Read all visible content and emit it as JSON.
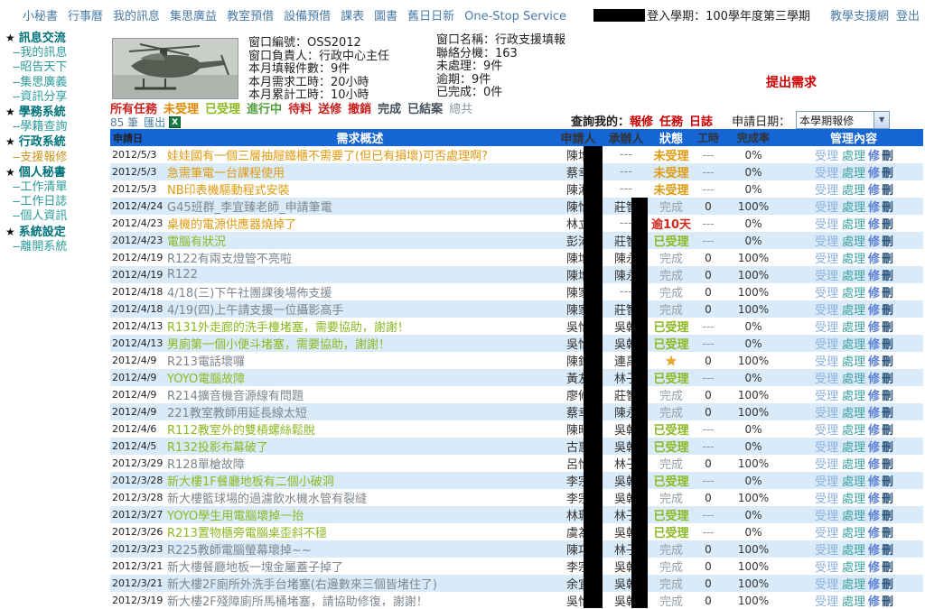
{
  "colors": {
    "nav_link": "#4a7ba7",
    "sidebar_category": "#00737a",
    "sidebar_link": "#2e9b9b",
    "sidebar_active": "#c9951c",
    "table_header_bg": "#1565d4",
    "row_alt_bg": "#d9eaf8",
    "accent_red": "#cc0000",
    "status_orange": "#e09a10",
    "status_green": "#8cb822",
    "status_red": "#d42a1e",
    "status_gray": "#96a0a8",
    "star_gold": "#f0a818"
  },
  "top_nav": {
    "items": [
      "小秘書",
      "行事曆",
      "我的訊息",
      "集思廣益",
      "教室預借",
      "設備預借",
      "課表",
      "圖書",
      "舊日日新",
      "One-Stop Service"
    ]
  },
  "header_right": {
    "login_term": "登入學期：100學年度第三學期",
    "links": [
      "教學支援網",
      "登出"
    ]
  },
  "sidebar": {
    "star": "★",
    "item_prefix": "--",
    "sections": [
      {
        "title": "訊息交流",
        "items": [
          {
            "label": "我的訊息"
          },
          {
            "label": "昭告天下"
          },
          {
            "label": "集思廣義"
          },
          {
            "label": "資訊分享"
          }
        ]
      },
      {
        "title": "學務系統",
        "items": [
          {
            "label": "學籍查詢"
          }
        ]
      },
      {
        "title": "行政系統",
        "items": [
          {
            "label": "支援報修",
            "active": true
          }
        ]
      },
      {
        "title": "個人秘書",
        "items": [
          {
            "label": "工作清單"
          },
          {
            "label": "工作日誌"
          },
          {
            "label": "個人資訊"
          }
        ]
      },
      {
        "title": "系統設定",
        "items": [
          {
            "label": "離開系統"
          }
        ]
      }
    ]
  },
  "info_panel": {
    "window_image": "attack-helicopter-photo",
    "left_lines": [
      "窗口編號：OSS2012",
      "窗口負責人：行政中心主任",
      "本月填報件數：9件",
      "本月需求工時：20小時",
      "本月累計工時：10小時"
    ],
    "right_lines": [
      "窗口名稱：行政支援填報",
      "聯絡分機：163",
      "未處理：9件",
      "逾期：9件",
      "已完成：0件"
    ],
    "request_button": "提出需求"
  },
  "toolbar": {
    "filters": [
      {
        "label": "所有任務",
        "color": "red"
      },
      {
        "label": "未受理",
        "color": "orange"
      },
      {
        "label": "已受理",
        "color": "green"
      },
      {
        "label": "進行中",
        "color": "green2"
      },
      {
        "label": "待料",
        "color": "red"
      },
      {
        "label": "送修",
        "color": "red"
      },
      {
        "label": "撤銷",
        "color": "red"
      },
      {
        "label": "完成",
        "color": "dark"
      },
      {
        "label": "已結案",
        "color": "dark"
      },
      {
        "label": "總共",
        "color": "muted"
      }
    ],
    "count": "85 筆",
    "export_label": "匯出",
    "export_icon": "excel-icon",
    "query_label": "查詢我的：",
    "query_links": [
      "報修",
      "任務",
      "日誌"
    ],
    "date_label": "申請日期：",
    "date_select_value": "本學期報修"
  },
  "table": {
    "columns": [
      "申請日",
      "需求概述",
      "申請人",
      "承辦人",
      "狀態",
      "工時",
      "完成率",
      "管理內容"
    ],
    "manage_links": [
      "受理",
      "處理",
      "修",
      "刪"
    ],
    "empty": "---",
    "rows": [
      {
        "date": "2012/5/3",
        "desc": "娃娃國有一個三層抽屜鐵櫃不需要了(但已有損壞)可否處理啊?",
        "desc_color": "orange",
        "applicant": "陳增",
        "handler": "",
        "status": "未受理",
        "status_color": "orange",
        "hours": "---",
        "rate": "0%"
      },
      {
        "date": "2012/5/3",
        "desc": "急需筆電一台課程使用",
        "desc_color": "orange",
        "applicant": "蔡幸",
        "handler": "",
        "status": "未受理",
        "status_color": "orange",
        "hours": "---",
        "rate": "0%"
      },
      {
        "date": "2012/5/3",
        "desc": "NB印表機驅動程式安裝",
        "desc_color": "orange",
        "applicant": "陳湘",
        "handler": "",
        "status": "未受理",
        "status_color": "orange",
        "hours": "---",
        "rate": "0%"
      },
      {
        "date": "2012/4/24",
        "desc": "G45班群_李宜臻老師_申請筆電",
        "desc_color": "gray",
        "applicant": "陳怡",
        "handler": "莊智",
        "status": "完成",
        "status_color": "gray",
        "hours": "0",
        "rate": "100%"
      },
      {
        "date": "2012/4/23",
        "desc": "桌機的電源供應器燒掉了",
        "desc_color": "orange",
        "applicant": "林立",
        "handler": "",
        "status": "逾10天",
        "status_color": "red",
        "hours": "---",
        "rate": "0%"
      },
      {
        "date": "2012/4/23",
        "desc": "電腦有狀況",
        "desc_color": "green",
        "applicant": "彭沛",
        "handler": "莊智",
        "status": "已受理",
        "status_color": "green",
        "hours": "---",
        "rate": "0%"
      },
      {
        "date": "2012/4/19",
        "desc": "R122有兩支燈管不亮啦",
        "desc_color": "gray",
        "applicant": "陳增",
        "handler": "陳永",
        "status": "完成",
        "status_color": "gray",
        "hours": "0",
        "rate": "100%"
      },
      {
        "date": "2012/4/19",
        "desc": "R122",
        "desc_color": "gray",
        "applicant": "陳增",
        "handler": "陳永",
        "status": "完成",
        "status_color": "gray",
        "hours": "0",
        "rate": "100%"
      },
      {
        "date": "2012/4/18",
        "desc": "4/18(三)下午社團課後場佈支援",
        "desc_color": "gray",
        "applicant": "陳家",
        "handler": "",
        "status": "完成",
        "status_color": "gray",
        "hours": "0",
        "rate": "100%"
      },
      {
        "date": "2012/4/18",
        "desc": "4/19(四)上午請支援一位攝影高手",
        "desc_color": "gray",
        "applicant": "陳家",
        "handler": "莊智",
        "status": "完成",
        "status_color": "gray",
        "hours": "0",
        "rate": "100%"
      },
      {
        "date": "2012/4/13",
        "desc": "R131外走廊的洗手檯堵塞，需要協助，謝謝！",
        "desc_color": "green",
        "applicant": "吳怡",
        "handler": "吳朝",
        "status": "已受理",
        "status_color": "green",
        "hours": "---",
        "rate": "0%"
      },
      {
        "date": "2012/4/13",
        "desc": "男廁第一個小便斗堵塞，需要協助，謝謝！",
        "desc_color": "green",
        "applicant": "吳怡",
        "handler": "吳朝",
        "status": "已受理",
        "status_color": "green",
        "hours": "---",
        "rate": "0%"
      },
      {
        "date": "2012/4/9",
        "desc": "R213電話壞囉",
        "desc_color": "gray",
        "applicant": "陳鈴",
        "handler": "連禹",
        "status": "star",
        "status_color": "star",
        "hours": "0",
        "rate": "100%"
      },
      {
        "date": "2012/4/9",
        "desc": "YOYO電腦故障",
        "desc_color": "green",
        "applicant": "黃友",
        "handler": "林子",
        "status": "已受理",
        "status_color": "green",
        "hours": "---",
        "rate": "0%"
      },
      {
        "date": "2012/4/9",
        "desc": "R214擴音機音源線有問題",
        "desc_color": "gray",
        "applicant": "廖修",
        "handler": "莊智",
        "status": "完成",
        "status_color": "gray",
        "hours": "0",
        "rate": "100%"
      },
      {
        "date": "2012/4/9",
        "desc": "221教室教師用延長線太短",
        "desc_color": "gray",
        "applicant": "蔡幸",
        "handler": "陳永",
        "status": "完成",
        "status_color": "gray",
        "hours": "0",
        "rate": "100%"
      },
      {
        "date": "2012/4/6",
        "desc": "R112教室外的雙槓螺絲鬆脫",
        "desc_color": "green",
        "applicant": "陳昭",
        "handler": "吳朝",
        "status": "已受理",
        "status_color": "green",
        "hours": "---",
        "rate": "0%"
      },
      {
        "date": "2012/4/5",
        "desc": "R132投影布幕破了",
        "desc_color": "green",
        "applicant": "古惠",
        "handler": "吳朝",
        "status": "已受理",
        "status_color": "green",
        "hours": "---",
        "rate": "0%"
      },
      {
        "date": "2012/3/29",
        "desc": "R128單槍故障",
        "desc_color": "gray",
        "applicant": "呂怡",
        "handler": "林子",
        "status": "完成",
        "status_color": "gray",
        "hours": "0",
        "rate": "100%"
      },
      {
        "date": "2012/3/28",
        "desc": "新大樓1F餐廳地板有二個小破洞",
        "desc_color": "green",
        "applicant": "李宗",
        "handler": "吳朝",
        "status": "已受理",
        "status_color": "green",
        "hours": "---",
        "rate": "0%"
      },
      {
        "date": "2012/3/28",
        "desc": "新大樓籃球場的過濾飲水機水管有裂縫",
        "desc_color": "gray",
        "applicant": "李宗",
        "handler": "吳朝",
        "status": "完成",
        "status_color": "gray",
        "hours": "0",
        "rate": "100%"
      },
      {
        "date": "2012/3/27",
        "desc": "YOYO學生用電腦壞掉一抬",
        "desc_color": "green",
        "applicant": "林珮",
        "handler": "林子",
        "status": "已受理",
        "status_color": "green",
        "hours": "---",
        "rate": "0%"
      },
      {
        "date": "2012/3/26",
        "desc": "R213置物櫃旁電腦桌歪斜不穩",
        "desc_color": "green",
        "applicant": "虞為",
        "handler": "吳朝",
        "status": "已受理",
        "status_color": "green",
        "hours": "---",
        "rate": "0%"
      },
      {
        "date": "2012/3/23",
        "desc": "R225教師電腦螢幕壞掉~~",
        "desc_color": "gray",
        "applicant": "陳巧",
        "handler": "林子",
        "status": "完成",
        "status_color": "gray",
        "hours": "0",
        "rate": "100%"
      },
      {
        "date": "2012/3/21",
        "desc": "新大樓餐廳地板一塊金屬蓋子掉了",
        "desc_color": "gray",
        "applicant": "李宗",
        "handler": "吳朝",
        "status": "完成",
        "status_color": "gray",
        "hours": "0",
        "rate": "100%"
      },
      {
        "date": "2012/3/21",
        "desc": "新大樓2F廁所外洗手台堵塞(右邊數來三個皆堵住了)",
        "desc_color": "gray",
        "applicant": "余宜",
        "handler": "吳朝",
        "status": "完成",
        "status_color": "gray",
        "hours": "0",
        "rate": "100%"
      },
      {
        "date": "2012/3/19",
        "desc": "新大樓2F殘障廁所馬桶堵塞，請協助修復，謝謝！",
        "desc_color": "gray",
        "applicant": "吳怡",
        "handler": "吳朝",
        "status": "完成",
        "status_color": "gray",
        "hours": "0",
        "rate": "100%"
      }
    ]
  }
}
